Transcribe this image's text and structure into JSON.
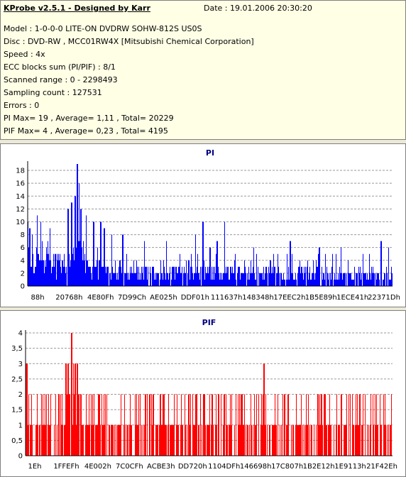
{
  "header": {
    "app_title": "KProbe v2.5.1 - Designed by Karr",
    "date": "Date : 19.01.2006 20:30:20",
    "lines": [
      "Model : 1-0-0-0 LITE-ON DVDRW SOHW-812S  US0S",
      "Disc : DVD-RW , MCC01RW4X [Mitsubishi Chemical Corporation]",
      "Speed : 4x",
      "ECC blocks sum (PI/PIF) : 8/1",
      "Scanned range : 0 - 2298493",
      "Sampling count : 127531",
      "Errors : 0",
      "PI Max= 19 , Average= 1,11 , Total= 20229",
      "PIF Max= 4 , Average= 0,23 , Total= 4195"
    ]
  },
  "chart_data": [
    {
      "type": "bar",
      "title": "PI",
      "color": "#0000ff",
      "ylim": [
        0,
        19
      ],
      "yticks": [
        "0",
        "2",
        "4",
        "6",
        "8",
        "10",
        "12",
        "14",
        "16",
        "18"
      ],
      "ytick_values": [
        0,
        2,
        4,
        6,
        8,
        10,
        12,
        14,
        16,
        18
      ],
      "xticks": [
        "88h",
        "20768h",
        "4E80Fh",
        "7D99Ch",
        "AE025h",
        "DDF01h",
        "111637h",
        "148348h",
        "17EEC2h",
        "1B5E89h",
        "1ECE41h",
        "22371Dh"
      ],
      "grid": true,
      "max": 19,
      "average": 1.11,
      "peaks": [
        {
          "pos": 0.0,
          "value": 10
        },
        {
          "pos": 0.005,
          "value": 9
        },
        {
          "pos": 0.012,
          "value": 8
        },
        {
          "pos": 0.025,
          "value": 11
        },
        {
          "pos": 0.035,
          "value": 10
        },
        {
          "pos": 0.06,
          "value": 9
        },
        {
          "pos": 0.11,
          "value": 12
        },
        {
          "pos": 0.12,
          "value": 13
        },
        {
          "pos": 0.13,
          "value": 14
        },
        {
          "pos": 0.135,
          "value": 19
        },
        {
          "pos": 0.14,
          "value": 16
        },
        {
          "pos": 0.145,
          "value": 12
        },
        {
          "pos": 0.16,
          "value": 11
        },
        {
          "pos": 0.18,
          "value": 10
        },
        {
          "pos": 0.2,
          "value": 10
        },
        {
          "pos": 0.21,
          "value": 9
        },
        {
          "pos": 0.23,
          "value": 8
        },
        {
          "pos": 0.26,
          "value": 8
        },
        {
          "pos": 0.32,
          "value": 7
        },
        {
          "pos": 0.38,
          "value": 7
        },
        {
          "pos": 0.46,
          "value": 8
        },
        {
          "pos": 0.48,
          "value": 10
        },
        {
          "pos": 0.5,
          "value": 6
        },
        {
          "pos": 0.52,
          "value": 7
        },
        {
          "pos": 0.54,
          "value": 10
        },
        {
          "pos": 0.62,
          "value": 6
        },
        {
          "pos": 0.72,
          "value": 7
        },
        {
          "pos": 0.8,
          "value": 6
        },
        {
          "pos": 0.86,
          "value": 6
        },
        {
          "pos": 0.92,
          "value": 5
        },
        {
          "pos": 0.97,
          "value": 7
        },
        {
          "pos": 0.99,
          "value": 6
        }
      ]
    },
    {
      "type": "bar",
      "title": "PIF",
      "color": "#ff0000",
      "ylim": [
        0,
        4
      ],
      "yticks": [
        "0",
        "0,5",
        "1",
        "1,5",
        "2",
        "2,5",
        "3",
        "3,5",
        "4"
      ],
      "ytick_values": [
        0,
        0.5,
        1,
        1.5,
        2,
        2.5,
        3,
        3.5,
        4
      ],
      "xticks": [
        "1Eh",
        "1FFEFh",
        "4E002h",
        "7C0CFh",
        "ACBE3h",
        "DD720h",
        "1104DFh",
        "146698h",
        "17C807h",
        "1B2E12h",
        "1E9113h",
        "21F42Eh"
      ],
      "grid": true,
      "max": 4,
      "average": 0.23,
      "peaks": [
        {
          "pos": 0.0,
          "value": 3
        },
        {
          "pos": 0.003,
          "value": 3
        },
        {
          "pos": 0.11,
          "value": 3
        },
        {
          "pos": 0.115,
          "value": 3
        },
        {
          "pos": 0.13,
          "value": 3
        },
        {
          "pos": 0.125,
          "value": 4
        },
        {
          "pos": 0.135,
          "value": 3
        },
        {
          "pos": 0.14,
          "value": 3
        },
        {
          "pos": 0.65,
          "value": 3
        }
      ]
    }
  ]
}
